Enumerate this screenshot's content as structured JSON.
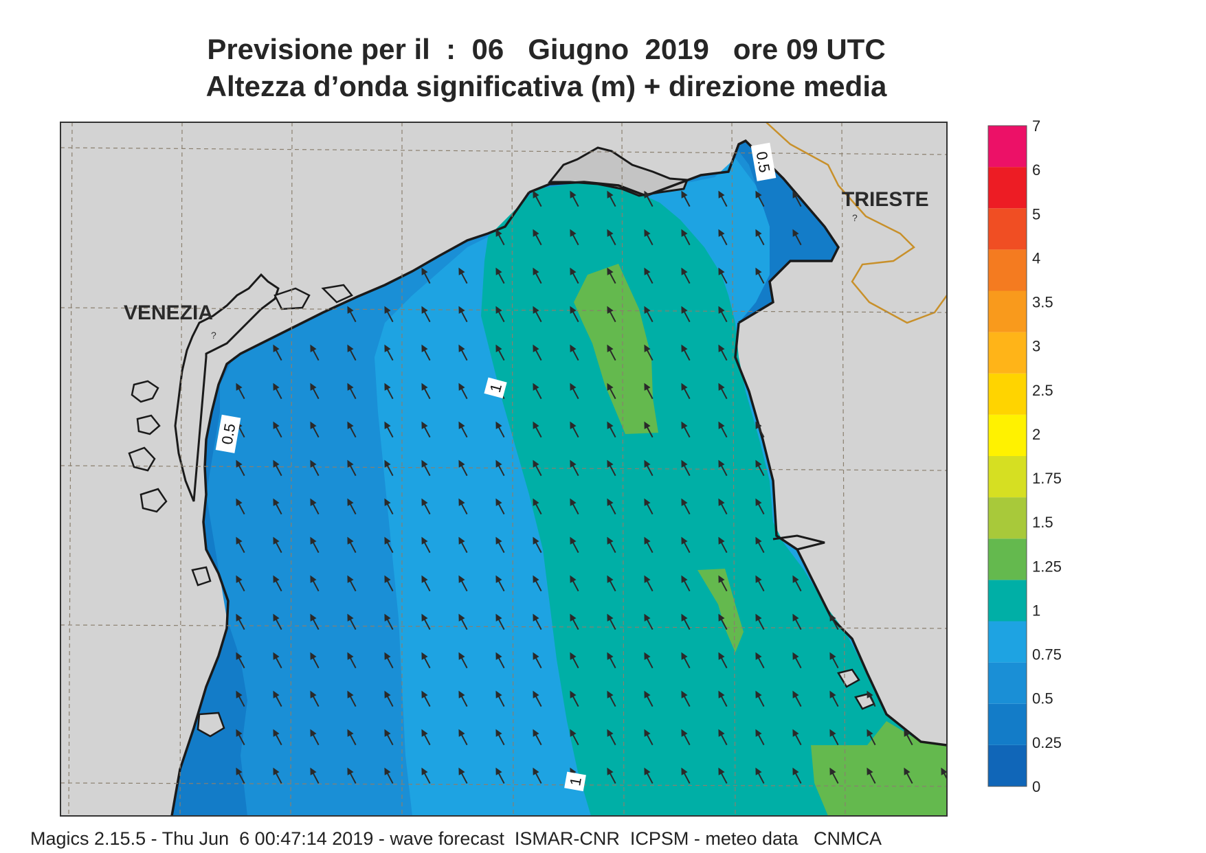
{
  "title": {
    "line1": "Previsione per il  :  06   Giugno  2019   ore 09 UTC",
    "line2": "Altezza d’onda significativa (m) + direzione media"
  },
  "cities": [
    {
      "name": "VENEZIA"
    },
    {
      "name": "TRIESTE"
    }
  ],
  "contour_labels": [
    "0.5",
    "0.5",
    "1",
    "1"
  ],
  "legend": {
    "levels": [
      "0",
      "0.25",
      "0.5",
      "0.75",
      "1",
      "1.25",
      "1.5",
      "1.75",
      "2",
      "2.5",
      "3",
      "3.5",
      "4",
      "4.5",
      "5",
      "6",
      "7"
    ],
    "colors": [
      "#1066b8",
      "#137cc8",
      "#1a8fd6",
      "#1ea3e2",
      "#00afa6",
      "#64b94e",
      "#a8c93a",
      "#d6df22",
      "#fff200",
      "#ffd400",
      "#ffb418",
      "#f99a1c",
      "#f47b20",
      "#f04e23",
      "#ed1c24",
      "#ec1167"
    ],
    "tick_labels": [
      "0",
      "0.25",
      "0.5",
      "0.75",
      "1",
      "1.25",
      "1.5",
      "1.75",
      "2",
      "2.5",
      "3",
      "3.5",
      "4",
      "5",
      "6",
      "7"
    ]
  },
  "colors": {
    "land": "#d3d3d3",
    "coast": "#1a1a1a",
    "border": "#c8902a",
    "grid": "#8a7f6e",
    "arrow": "#2a2a2a"
  },
  "footer": "Magics 2.15.5 - Thu Jun  6 00:47:14 2019 - wave forecast  ISMAR-CNR  ICPSM - meteo data   CNMCA"
}
